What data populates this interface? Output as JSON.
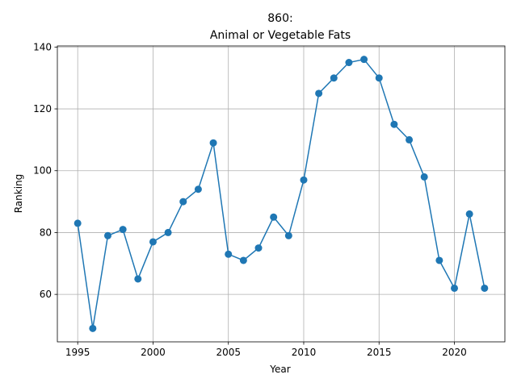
{
  "chart_data": {
    "type": "line",
    "title_line1": "860:",
    "title_line2": "Animal or Vegetable Fats",
    "xlabel": "Year",
    "ylabel": "Ranking",
    "xlim": [
      1993.65,
      2023.35
    ],
    "ylim": [
      44.65,
      140.35
    ],
    "x_ticks": [
      1995,
      2000,
      2005,
      2010,
      2015,
      2020
    ],
    "y_ticks": [
      60,
      80,
      100,
      120,
      140
    ],
    "grid": true,
    "line_color": "#1f77b4",
    "marker": "circle",
    "series": [
      {
        "x": [
          1995,
          1996,
          1997,
          1998,
          1999,
          2000,
          2001,
          2002,
          2003,
          2004,
          2005,
          2006,
          2007,
          2008,
          2009,
          2010,
          2011,
          2012,
          2013,
          2014,
          2015,
          2016,
          2017,
          2018,
          2019,
          2020,
          2021,
          2022
        ],
        "values": [
          83,
          49,
          79,
          81,
          65,
          77,
          80,
          90,
          94,
          109,
          73,
          71,
          75,
          85,
          79,
          97,
          125,
          130,
          135,
          136,
          130,
          115,
          110,
          98,
          71,
          62,
          86,
          62
        ]
      }
    ]
  }
}
